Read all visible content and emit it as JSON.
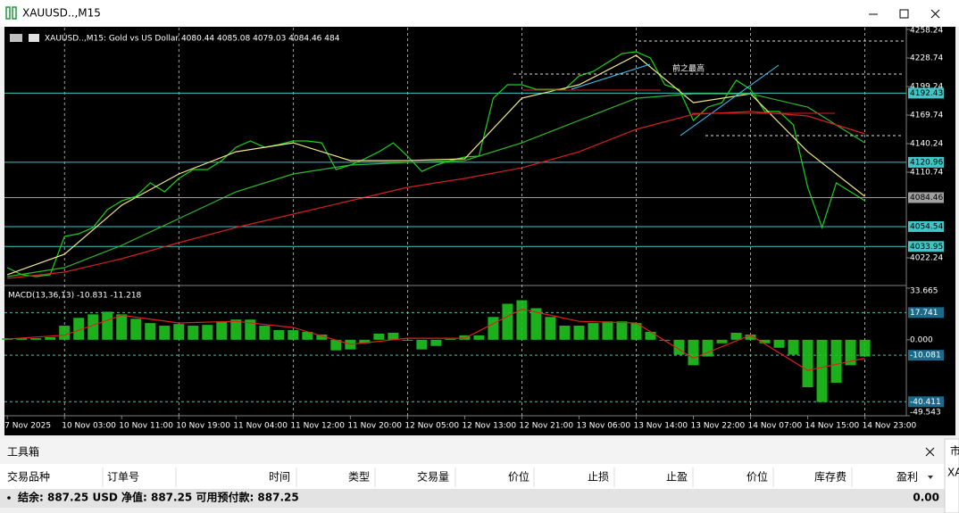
{
  "window": {
    "title": "XAUUSD..,M15"
  },
  "chart_data": [
    {
      "type": "line",
      "title": "XAUUSD..,M15:  Gold vs US Dollar  4080.44 4085.08 4079.03 4084.46  484",
      "annotation": "前之最高",
      "xlim": [
        -0.2,
        62.9
      ],
      "ylim": [
        3995.5,
        4260.1
      ],
      "yticks": [
        4258.24,
        4228.74,
        4199.24,
        4169.74,
        4140.24,
        4110.74,
        4022.24
      ],
      "levels": [
        4192.43,
        4120.96,
        4054.54,
        4033.95
      ],
      "level_color": "#3ec7c7",
      "price_line": 4084.46,
      "price_line_color": "#a0a0a0",
      "series": [
        {
          "color": "#19d219",
          "x": [
            0,
            1,
            2,
            3,
            4,
            5,
            6,
            7,
            8,
            9,
            10,
            11,
            12,
            13,
            14,
            15,
            16,
            17,
            18,
            19,
            20,
            21,
            22,
            23,
            24,
            25,
            26,
            27,
            28,
            29,
            30,
            31,
            32,
            33,
            34,
            35,
            36,
            37,
            38,
            39,
            40,
            41,
            42,
            43,
            44,
            45,
            46,
            47,
            48,
            49,
            50,
            51,
            52,
            53,
            54,
            55,
            56,
            57,
            58,
            59,
            60
          ],
          "values": [
            4012.1,
            4004.8,
            4002.9,
            4004.8,
            4044.4,
            4047.1,
            4053.6,
            4072.0,
            4081.2,
            4085.8,
            4099.7,
            4090.5,
            4104.3,
            4113.5,
            4113.5,
            4122.7,
            4136.5,
            4143.0,
            4136.5,
            4139.3,
            4143.0,
            4143.0,
            4141.1,
            4113.5,
            4118.1,
            4124.6,
            4131.9,
            4141.1,
            4127.3,
            4111.6,
            4118.1,
            4122.7,
            4126.4,
            4127.3,
            4187.2,
            4201.1,
            4201.1,
            4196.4,
            4196.4,
            4196.4,
            4210.3,
            4214.9,
            4224.1,
            4233.3,
            4235.2,
            4228.7,
            4201.1,
            4196.4,
            4164.2,
            4178.0,
            4182.6,
            4205.7,
            4196.4,
            4173.4,
            4173.4,
            4159.6,
            4095.1,
            4053.6,
            4099.7,
            4090.5,
            4081.2
          ]
        },
        {
          "color": "#f0e68c",
          "x": [
            0,
            4,
            8,
            12,
            16,
            20,
            24,
            28,
            32,
            36,
            40,
            44,
            48,
            52,
            56,
            60
          ],
          "values": [
            4004.8,
            4025.9,
            4076.6,
            4108.9,
            4131.9,
            4141.1,
            4122.7,
            4122.7,
            4124.6,
            4187.2,
            4201.1,
            4231.5,
            4182.6,
            4191.8,
            4131.9,
            4085.8
          ]
        },
        {
          "color": "#2eb82e",
          "x": [
            0,
            4,
            8,
            12,
            16,
            20,
            24,
            28,
            32,
            36,
            40,
            44,
            48,
            52,
            56,
            60
          ],
          "values": [
            4002.9,
            4012.1,
            4035.1,
            4062.8,
            4090.5,
            4108.9,
            4118.1,
            4120.9,
            4122.7,
            4141.1,
            4164.2,
            4187.2,
            4191.8,
            4191.8,
            4178.0,
            4141.1
          ]
        },
        {
          "color": "#d42020",
          "x": [
            0,
            4,
            8,
            12,
            16,
            20,
            24,
            28,
            32,
            36,
            40,
            44,
            48,
            52,
            56,
            60
          ],
          "values": [
            4001.0,
            4007.5,
            4021.3,
            4037.9,
            4053.6,
            4067.4,
            4081.2,
            4095.1,
            4104.3,
            4115.3,
            4131.9,
            4155.0,
            4170.6,
            4173.4,
            4168.8,
            4150.4
          ]
        }
      ]
    },
    {
      "type": "bar",
      "title": "MACD(13,36,13) -10.831 -11.218",
      "color": "#1fc41f",
      "grid": true,
      "xlim": [
        -0.2,
        62.9
      ],
      "ylim": [
        -49.543,
        33.665
      ],
      "yticks": [
        33.665,
        {
          "value": 0,
          "label": "0.000"
        },
        -49.543
      ],
      "levels": [
        17.741,
        -10.081,
        -40.411
      ],
      "level_color": "#3ec7c7",
      "xticks": [
        {
          "value": 0,
          "label": "7 Nov 2025"
        },
        {
          "value": 4,
          "label": "10 Nov 03:00"
        },
        {
          "value": 8,
          "label": "10 Nov 11:00"
        },
        {
          "value": 12,
          "label": "10 Nov 19:00"
        },
        {
          "value": 16,
          "label": "11 Nov 04:00"
        },
        {
          "value": 20,
          "label": "11 Nov 12:00"
        },
        {
          "value": 24,
          "label": "11 Nov 20:00"
        },
        {
          "value": 28,
          "label": "12 Nov 05:00"
        },
        {
          "value": 32,
          "label": "12 Nov 13:00"
        },
        {
          "value": 36,
          "label": "12 Nov 21:00"
        },
        {
          "value": 40,
          "label": "13 Nov 06:00"
        },
        {
          "value": 44,
          "label": "13 Nov 14:00"
        },
        {
          "value": 48,
          "label": "13 Nov 22:00"
        },
        {
          "value": 52,
          "label": "14 Nov 07:00"
        },
        {
          "value": 56,
          "label": "14 Nov 15:00"
        },
        {
          "value": 60,
          "label": "14 Nov 23:00"
        }
      ],
      "x": [
        0,
        1,
        2,
        3,
        4,
        5,
        6,
        7,
        8,
        9,
        10,
        11,
        12,
        13,
        14,
        15,
        16,
        17,
        18,
        19,
        20,
        21,
        22,
        23,
        24,
        25,
        26,
        27,
        28,
        29,
        30,
        31,
        32,
        33,
        34,
        35,
        36,
        37,
        38,
        39,
        40,
        41,
        42,
        43,
        44,
        45,
        46,
        47,
        48,
        49,
        50,
        51,
        52,
        53,
        54,
        55,
        56,
        57,
        58,
        59,
        60
      ],
      "values": [
        1.0,
        1.0,
        1.0,
        1.7,
        9.2,
        14.3,
        16.6,
        18.3,
        16.6,
        13.7,
        10.9,
        9.2,
        10.3,
        9.2,
        9.7,
        12.0,
        13.2,
        13.2,
        9.2,
        6.3,
        6.3,
        5.2,
        3.4,
        -6.9,
        -6.3,
        -2.3,
        4.0,
        4.6,
        -0.6,
        -6.3,
        -4.0,
        0.6,
        2.9,
        2.9,
        14.9,
        23.5,
        25.8,
        20.6,
        14.9,
        9.2,
        9.2,
        10.9,
        12.0,
        12.0,
        10.9,
        5.2,
        -0.6,
        -9.7,
        -16.6,
        -10.9,
        -2.3,
        4.6,
        3.4,
        -2.3,
        -5.2,
        -9.7,
        -30.9,
        -40.6,
        -28.0,
        -16.6,
        -10.9
      ],
      "signal": {
        "color": "#e02020",
        "x": [
          0,
          4,
          8,
          12,
          16,
          20,
          24,
          28,
          32,
          36,
          40,
          44,
          48,
          52,
          56,
          60
        ],
        "values": [
          0.5,
          3,
          16,
          11,
          12,
          8,
          -3,
          1,
          1,
          20,
          12,
          11,
          -12,
          3,
          -20,
          -12
        ]
      }
    }
  ],
  "toolbox": {
    "title": "工具箱",
    "columns": [
      "交易品种",
      "订单号",
      "时间",
      "类型",
      "交易量",
      "价位",
      "止损",
      "止盈",
      "价位",
      "库存费",
      "盈利"
    ],
    "balance": "结余: 887.25 USD  净值: 887.25  可用预付款: 887.25",
    "profit": "0.00"
  },
  "side_panel": {
    "title": "市",
    "symbol": "XA"
  }
}
